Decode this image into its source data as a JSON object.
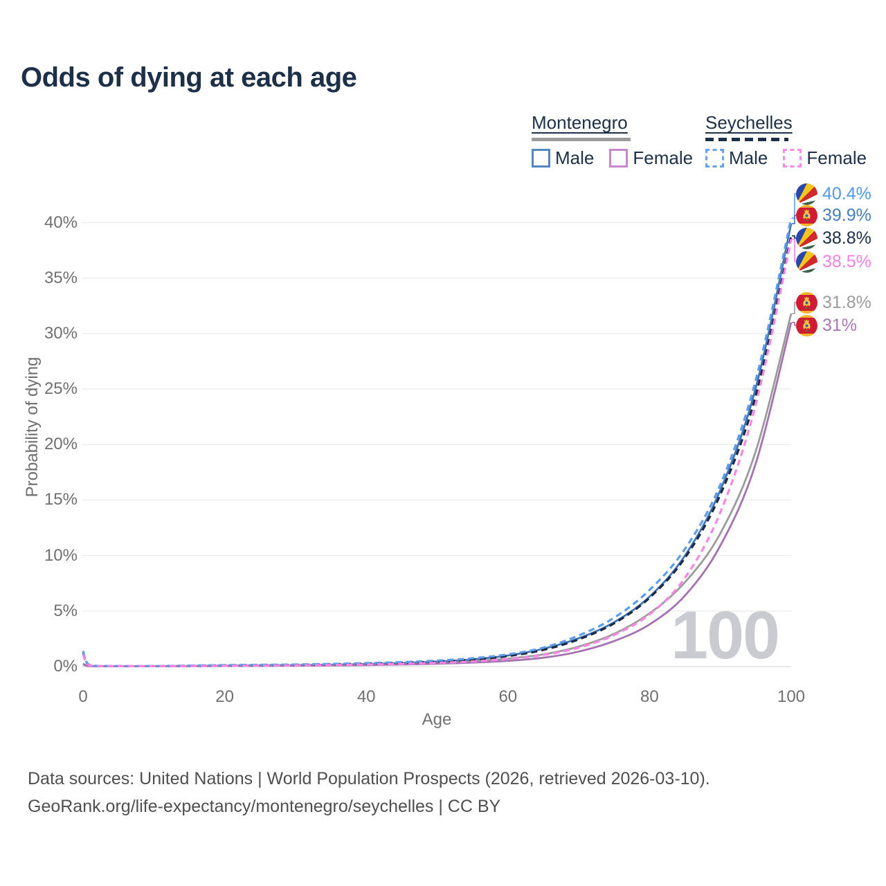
{
  "title": "Odds of dying at each age",
  "legend": {
    "groups": [
      {
        "name": "Montenegro",
        "line_style": "solid",
        "underline_color": "#9b9b9b",
        "items": [
          {
            "label": "Male",
            "color": "#5585c0"
          },
          {
            "label": "Female",
            "color": "#c489cc"
          }
        ]
      },
      {
        "name": "Seychelles",
        "line_style": "dashed",
        "underline_color": "#1d2e49",
        "items": [
          {
            "label": "Male",
            "color": "#6aa2e8"
          },
          {
            "label": "Female",
            "color": "#fb8ae4"
          }
        ]
      }
    ]
  },
  "chart_data": {
    "type": "line",
    "title": "Odds of dying at each age",
    "xlabel": "Age",
    "ylabel": "Probability of dying",
    "xlim": [
      0,
      100
    ],
    "ylim_percent": [
      0,
      42
    ],
    "grid": "horizontal",
    "hover_age_watermark": "100",
    "x_ticks": [
      {
        "value": 0,
        "label": "0"
      },
      {
        "value": 20,
        "label": "20"
      },
      {
        "value": 40,
        "label": "40"
      },
      {
        "value": 60,
        "label": "60"
      },
      {
        "value": 80,
        "label": "80"
      },
      {
        "value": 100,
        "label": "100"
      }
    ],
    "y_ticks": [
      {
        "value": 0,
        "label": "0%"
      },
      {
        "value": 5,
        "label": "5%"
      },
      {
        "value": 10,
        "label": "10%"
      },
      {
        "value": 15,
        "label": "15%"
      },
      {
        "value": 20,
        "label": "20%"
      },
      {
        "value": 25,
        "label": "25%"
      },
      {
        "value": 30,
        "label": "30%"
      },
      {
        "value": 35,
        "label": "35%"
      },
      {
        "value": 40,
        "label": "40%"
      }
    ],
    "ages": [
      0,
      1,
      5,
      10,
      15,
      20,
      25,
      30,
      35,
      40,
      45,
      50,
      55,
      60,
      65,
      70,
      75,
      80,
      85,
      90,
      95,
      100
    ],
    "series": [
      {
        "name": "Montenegro",
        "country": "Montenegro",
        "sex": "Both",
        "color": "#9b9b9b",
        "dashed": false,
        "flag": "montenegro",
        "end_label": "31.8%",
        "end_value_percent": 31.8,
        "label_color": "#9b9b9b",
        "values_percent": [
          0.22,
          0.04,
          0.03,
          0.03,
          0.04,
          0.06,
          0.08,
          0.1,
          0.13,
          0.18,
          0.25,
          0.35,
          0.5,
          0.72,
          1.1,
          1.8,
          2.95,
          4.8,
          7.6,
          12.0,
          19.4,
          31.8
        ]
      },
      {
        "name": "Montenegro Male",
        "country": "Montenegro",
        "sex": "Male",
        "color": "#4173b3",
        "dashed": false,
        "flag": "montenegro",
        "end_label": "39.9%",
        "end_value_percent": 39.9,
        "label_color": "#4a7dc0",
        "values_percent": [
          0.25,
          0.05,
          0.03,
          0.04,
          0.06,
          0.09,
          0.11,
          0.13,
          0.17,
          0.23,
          0.32,
          0.45,
          0.65,
          1.0,
          1.6,
          2.55,
          4.0,
          6.3,
          10.0,
          15.9,
          25.1,
          39.9
        ]
      },
      {
        "name": "Montenegro Female",
        "country": "Montenegro",
        "sex": "Female",
        "color": "#a472b0",
        "dashed": false,
        "flag": "montenegro",
        "end_label": "31%",
        "end_value_percent": 31.0,
        "label_color": "#a678b4",
        "values_percent": [
          0.2,
          0.035,
          0.025,
          0.025,
          0.035,
          0.05,
          0.06,
          0.08,
          0.1,
          0.14,
          0.19,
          0.26,
          0.36,
          0.52,
          0.8,
          1.35,
          2.3,
          3.8,
          6.4,
          10.9,
          18.3,
          31.0
        ]
      },
      {
        "name": "Seychelles",
        "country": "Seychelles",
        "sex": "Both",
        "color": "#1b2b45",
        "dashed": true,
        "flag": "seychelles",
        "end_label": "38.8%",
        "end_value_percent": 38.8,
        "label_color": "#1d2e49",
        "values_percent": [
          1.25,
          0.1,
          0.04,
          0.04,
          0.07,
          0.1,
          0.12,
          0.15,
          0.2,
          0.26,
          0.34,
          0.46,
          0.63,
          0.95,
          1.5,
          2.45,
          3.9,
          6.2,
          9.8,
          15.5,
          24.4,
          38.8
        ]
      },
      {
        "name": "Seychelles Male",
        "country": "Seychelles",
        "sex": "Male",
        "color": "#5e9ce8",
        "dashed": true,
        "flag": "seychelles",
        "end_label": "40.4%",
        "end_value_percent": 40.4,
        "label_color": "#4f97ea",
        "values_percent": [
          1.4,
          0.12,
          0.05,
          0.05,
          0.09,
          0.13,
          0.16,
          0.19,
          0.24,
          0.31,
          0.4,
          0.54,
          0.75,
          1.1,
          1.7,
          2.8,
          4.4,
          6.9,
          10.6,
          16.4,
          25.8,
          40.4
        ]
      },
      {
        "name": "Seychelles Female",
        "country": "Seychelles",
        "sex": "Female",
        "color": "#fa85e2",
        "dashed": true,
        "flag": "seychelles",
        "end_label": "38.5%",
        "end_value_percent": 38.5,
        "label_color": "#f97fe0",
        "values_percent": [
          1.1,
          0.09,
          0.04,
          0.04,
          0.05,
          0.07,
          0.09,
          0.11,
          0.14,
          0.19,
          0.25,
          0.33,
          0.46,
          0.68,
          1.05,
          1.7,
          2.85,
          4.7,
          8.0,
          13.9,
          23.6,
          38.5
        ]
      }
    ]
  },
  "footer": {
    "line1": "Data sources: United Nations | World Population Prospects (2026, retrieved 2026-03-10).",
    "line2": "GeoRank.org/life-expectancy/montenegro/seychelles | CC BY"
  }
}
